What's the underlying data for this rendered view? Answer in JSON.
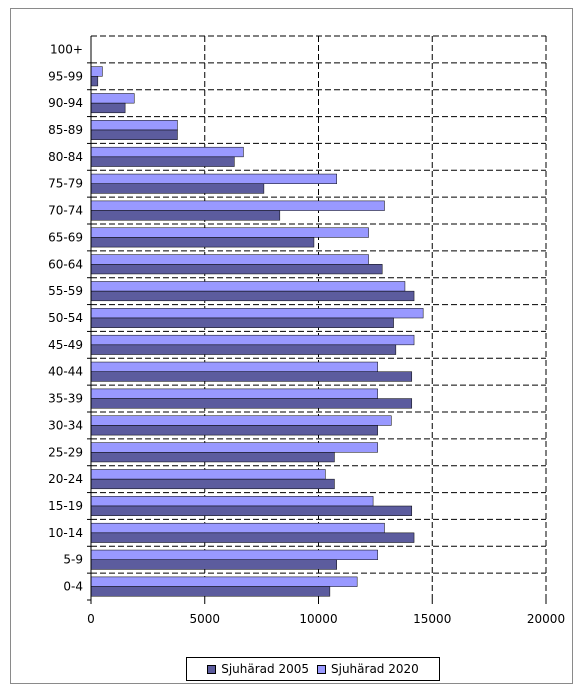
{
  "chart_data": {
    "type": "bar",
    "orientation": "horizontal",
    "categories": [
      "0-4",
      "5-9",
      "10-14",
      "15-19",
      "20-24",
      "25-29",
      "30-34",
      "35-39",
      "40-44",
      "45-49",
      "50-54",
      "55-59",
      "60-64",
      "65-69",
      "70-74",
      "75-79",
      "80-84",
      "85-89",
      "90-94",
      "95-99",
      "100+"
    ],
    "series": [
      {
        "name": "Sjuhärad 2005",
        "color": "#5c5c9e",
        "values": [
          10500,
          10800,
          14200,
          14100,
          10700,
          10700,
          12600,
          14100,
          14100,
          13400,
          13300,
          14200,
          12800,
          9800,
          8300,
          7600,
          6300,
          3800,
          1500,
          300,
          0
        ]
      },
      {
        "name": "Sjuhärad 2020",
        "color": "#9999ff",
        "values": [
          11700,
          12600,
          12900,
          12400,
          10300,
          12600,
          13200,
          12600,
          12600,
          14200,
          14600,
          13800,
          12200,
          12200,
          12900,
          10800,
          6700,
          3800,
          1900,
          500,
          0
        ]
      }
    ],
    "xlim": [
      0,
      20000
    ],
    "xticks": [
      "0",
      "5000",
      "10000",
      "15000",
      "20000"
    ],
    "grid": "dashed vertical and horizontal",
    "legend_position": "bottom"
  }
}
